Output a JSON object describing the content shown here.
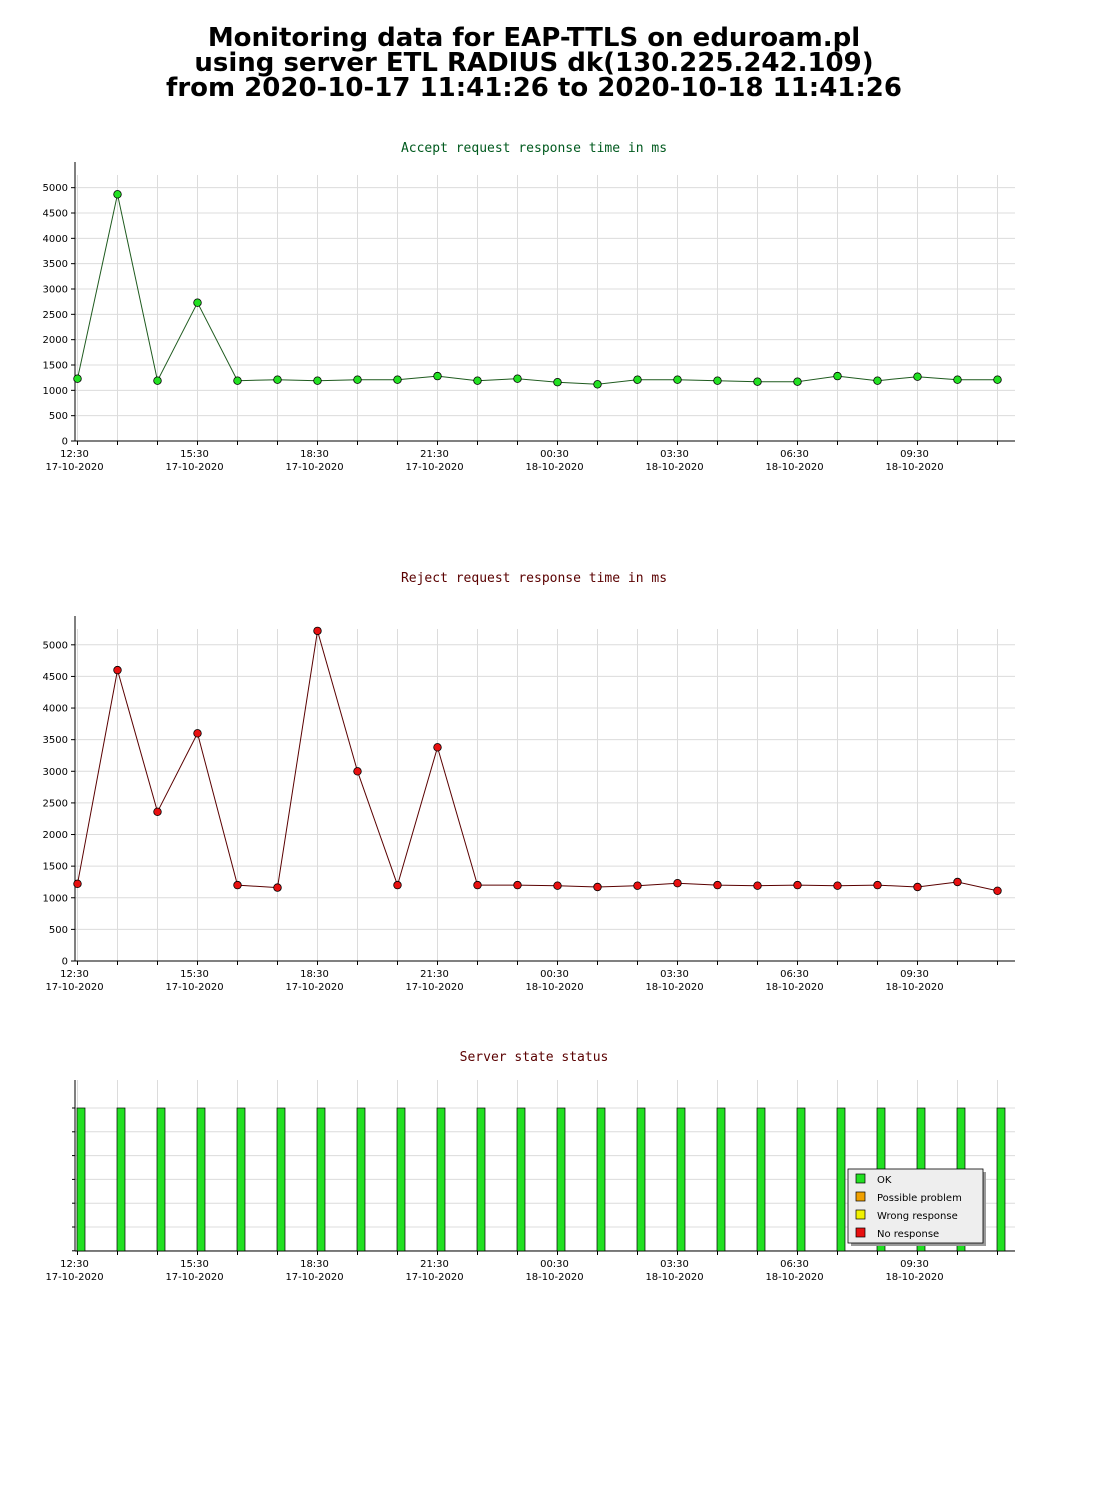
{
  "title": {
    "line1": "Monitoring data for EAP-TTLS on eduroam.pl",
    "line2": "using server ETL RADIUS dk(130.225.242.109)",
    "line3": "from 2020-10-17 11:41:26 to 2020-10-18 11:41:26"
  },
  "colors": {
    "accept_title": "#005a1e",
    "reject_title": "#5a0000",
    "status_title": "#5a0000",
    "accept_line": "#1e5a1e",
    "accept_marker": "#22e022",
    "reject_line": "#5a0000",
    "reject_marker": "#e81010",
    "ok_bar": "#22e022",
    "possible_problem": "#f0a000",
    "wrong_response": "#f0f000",
    "no_response": "#e81010",
    "grid": "#dcdcdc"
  },
  "chart_data": [
    {
      "type": "line",
      "title": "Accept request response time in ms",
      "ylim": [
        0,
        5250
      ],
      "yticks": [
        0,
        500,
        1000,
        1500,
        2000,
        2500,
        3000,
        3500,
        4000,
        4500,
        5000
      ],
      "grid": true,
      "x_tick_labels": [
        {
          "time": "12:30",
          "date": "17-10-2020"
        },
        {
          "time": "15:30",
          "date": "17-10-2020"
        },
        {
          "time": "18:30",
          "date": "17-10-2020"
        },
        {
          "time": "21:30",
          "date": "17-10-2020"
        },
        {
          "time": "00:30",
          "date": "18-10-2020"
        },
        {
          "time": "03:30",
          "date": "18-10-2020"
        },
        {
          "time": "06:30",
          "date": "18-10-2020"
        },
        {
          "time": "09:30",
          "date": "18-10-2020"
        }
      ],
      "x": [
        "2020-10-17 12:30",
        "2020-10-17 13:30",
        "2020-10-17 14:30",
        "2020-10-17 15:30",
        "2020-10-17 16:30",
        "2020-10-17 17:30",
        "2020-10-17 18:30",
        "2020-10-17 19:30",
        "2020-10-17 20:30",
        "2020-10-17 21:30",
        "2020-10-17 22:30",
        "2020-10-17 23:30",
        "2020-10-18 00:30",
        "2020-10-18 01:30",
        "2020-10-18 02:30",
        "2020-10-18 03:30",
        "2020-10-18 04:30",
        "2020-10-18 05:30",
        "2020-10-18 06:30",
        "2020-10-18 07:30",
        "2020-10-18 08:30",
        "2020-10-18 09:30",
        "2020-10-18 10:30",
        "2020-10-18 11:30"
      ],
      "values": [
        1230,
        4870,
        1190,
        2730,
        1190,
        1210,
        1190,
        1210,
        1210,
        1280,
        1190,
        1230,
        1160,
        1120,
        1210,
        1210,
        1190,
        1170,
        1170,
        1280,
        1190,
        1270,
        1210,
        1210
      ]
    },
    {
      "type": "line",
      "title": "Reject request response time in ms",
      "ylim": [
        0,
        5250
      ],
      "yticks": [
        0,
        500,
        1000,
        1500,
        2000,
        2500,
        3000,
        3500,
        4000,
        4500,
        5000
      ],
      "grid": true,
      "x_tick_labels": [
        {
          "time": "12:30",
          "date": "17-10-2020"
        },
        {
          "time": "15:30",
          "date": "17-10-2020"
        },
        {
          "time": "18:30",
          "date": "17-10-2020"
        },
        {
          "time": "21:30",
          "date": "17-10-2020"
        },
        {
          "time": "00:30",
          "date": "18-10-2020"
        },
        {
          "time": "03:30",
          "date": "18-10-2020"
        },
        {
          "time": "06:30",
          "date": "18-10-2020"
        },
        {
          "time": "09:30",
          "date": "18-10-2020"
        }
      ],
      "x": [
        "2020-10-17 12:30",
        "2020-10-17 13:30",
        "2020-10-17 14:30",
        "2020-10-17 15:30",
        "2020-10-17 16:30",
        "2020-10-17 17:30",
        "2020-10-17 18:30",
        "2020-10-17 19:30",
        "2020-10-17 20:30",
        "2020-10-17 21:30",
        "2020-10-17 22:30",
        "2020-10-17 23:30",
        "2020-10-18 00:30",
        "2020-10-18 01:30",
        "2020-10-18 02:30",
        "2020-10-18 03:30",
        "2020-10-18 04:30",
        "2020-10-18 05:30",
        "2020-10-18 06:30",
        "2020-10-18 07:30",
        "2020-10-18 08:30",
        "2020-10-18 09:30",
        "2020-10-18 10:30",
        "2020-10-18 11:30"
      ],
      "values": [
        1220,
        4600,
        2360,
        3600,
        1200,
        1160,
        5220,
        3000,
        1200,
        3380,
        1200,
        1200,
        1190,
        1170,
        1190,
        1230,
        1200,
        1190,
        1200,
        1190,
        1200,
        1170,
        1250,
        1110
      ]
    },
    {
      "type": "bar",
      "title": "Server state status",
      "grid": true,
      "x_tick_labels": [
        {
          "time": "12:30",
          "date": "17-10-2020"
        },
        {
          "time": "15:30",
          "date": "17-10-2020"
        },
        {
          "time": "18:30",
          "date": "17-10-2020"
        },
        {
          "time": "21:30",
          "date": "17-10-2020"
        },
        {
          "time": "00:30",
          "date": "18-10-2020"
        },
        {
          "time": "03:30",
          "date": "18-10-2020"
        },
        {
          "time": "06:30",
          "date": "18-10-2020"
        },
        {
          "time": "09:30",
          "date": "18-10-2020"
        }
      ],
      "x": [
        "2020-10-17 12:30",
        "2020-10-17 13:30",
        "2020-10-17 14:30",
        "2020-10-17 15:30",
        "2020-10-17 16:30",
        "2020-10-17 17:30",
        "2020-10-17 18:30",
        "2020-10-17 19:30",
        "2020-10-17 20:30",
        "2020-10-17 21:30",
        "2020-10-17 22:30",
        "2020-10-17 23:30",
        "2020-10-18 00:30",
        "2020-10-18 01:30",
        "2020-10-18 02:30",
        "2020-10-18 03:30",
        "2020-10-18 04:30",
        "2020-10-18 05:30",
        "2020-10-18 06:30",
        "2020-10-18 07:30",
        "2020-10-18 08:30",
        "2020-10-18 09:30",
        "2020-10-18 10:30",
        "2020-10-18 11:30"
      ],
      "status": [
        "OK",
        "OK",
        "OK",
        "OK",
        "OK",
        "OK",
        "OK",
        "OK",
        "OK",
        "OK",
        "OK",
        "OK",
        "OK",
        "OK",
        "OK",
        "OK",
        "OK",
        "OK",
        "OK",
        "OK",
        "OK",
        "OK",
        "OK",
        "OK"
      ],
      "legend_position": "bottom-right",
      "legend": [
        {
          "label": "OK",
          "color": "#22e022"
        },
        {
          "label": "Possible problem",
          "color": "#f0a000"
        },
        {
          "label": "Wrong response",
          "color": "#f0f000"
        },
        {
          "label": "No response",
          "color": "#e81010"
        }
      ]
    }
  ]
}
